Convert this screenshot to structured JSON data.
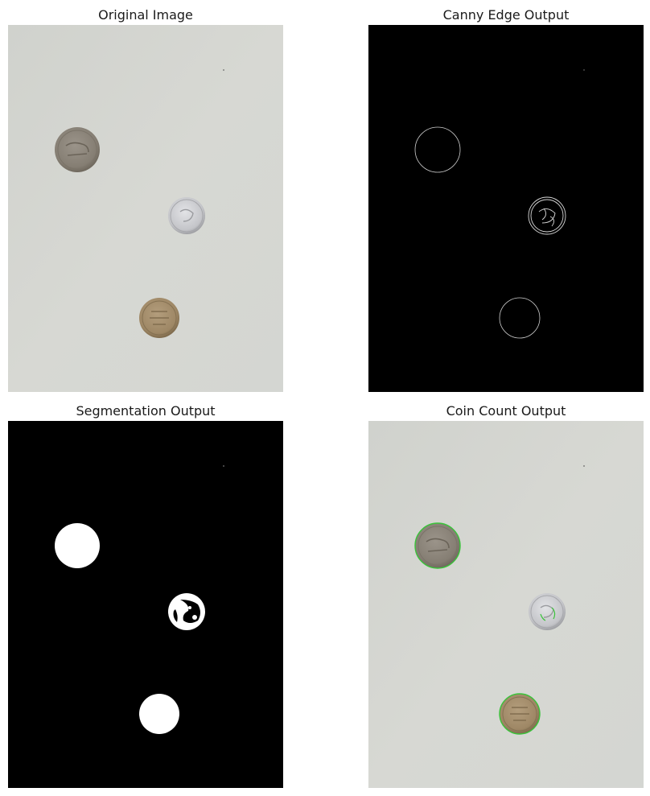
{
  "panels": [
    {
      "id": "original",
      "title": "Original Image"
    },
    {
      "id": "canny",
      "title": "Canny Edge Output"
    },
    {
      "id": "segmentation",
      "title": "Segmentation Output"
    },
    {
      "id": "count",
      "title": "Coin Count Output"
    }
  ],
  "colors": {
    "paper": "#d6d8d3",
    "coin_dark": "#8b8478",
    "coin_silver": "#c9cacd",
    "coin_bronze": "#a08a6a",
    "detection_outline": "#3ac33a"
  }
}
